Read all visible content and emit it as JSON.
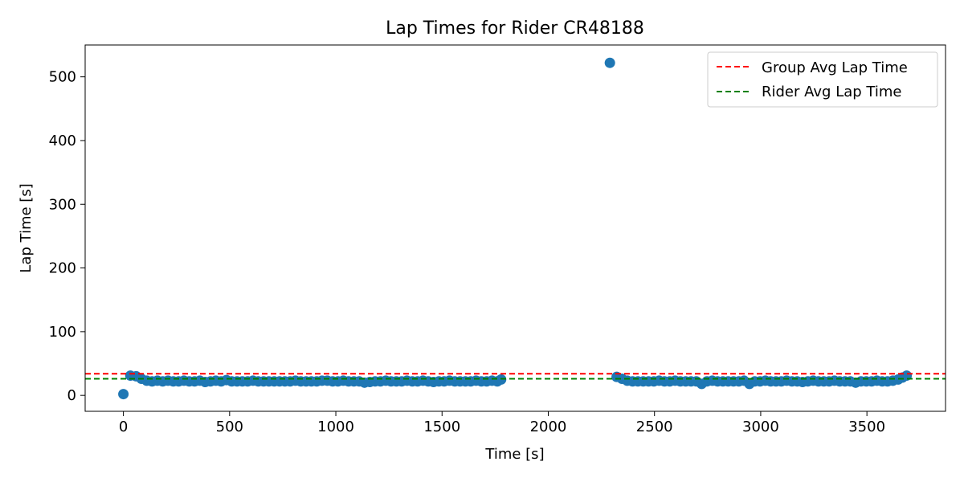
{
  "chart_data": {
    "type": "scatter",
    "title": "Lap Times for Rider CR48188",
    "xlabel": "Time [s]",
    "ylabel": "Lap Time [s]",
    "xlim": [
      -180,
      3870
    ],
    "ylim": [
      -25,
      550
    ],
    "xticks": [
      0,
      500,
      1000,
      1500,
      2000,
      2500,
      3000,
      3500
    ],
    "yticks": [
      0,
      100,
      200,
      300,
      400,
      500
    ],
    "grid": false,
    "legend_position": "top-right",
    "point_color": "#1f77b4",
    "lap_series": {
      "x": [
        0,
        33,
        60,
        85,
        110,
        135,
        160,
        185,
        210,
        235,
        260,
        285,
        310,
        335,
        360,
        385,
        410,
        435,
        460,
        485,
        510,
        535,
        560,
        585,
        610,
        635,
        660,
        685,
        710,
        735,
        760,
        785,
        810,
        835,
        860,
        885,
        910,
        935,
        960,
        985,
        1010,
        1035,
        1060,
        1085,
        1110,
        1135,
        1160,
        1185,
        1210,
        1235,
        1260,
        1285,
        1310,
        1335,
        1360,
        1385,
        1410,
        1435,
        1460,
        1485,
        1510,
        1535,
        1560,
        1585,
        1610,
        1635,
        1660,
        1685,
        1710,
        1735,
        1760,
        1778,
        2290,
        2322,
        2347,
        2372,
        2397,
        2422,
        2447,
        2472,
        2497,
        2522,
        2547,
        2572,
        2597,
        2622,
        2647,
        2672,
        2697,
        2722,
        2747,
        2772,
        2797,
        2822,
        2847,
        2872,
        2897,
        2922,
        2947,
        2972,
        2997,
        3022,
        3047,
        3072,
        3097,
        3122,
        3147,
        3172,
        3197,
        3222,
        3247,
        3272,
        3297,
        3322,
        3347,
        3372,
        3397,
        3422,
        3447,
        3472,
        3497,
        3522,
        3547,
        3572,
        3597,
        3622,
        3647,
        3667,
        3687
      ],
      "y": [
        2,
        31,
        30,
        26,
        23,
        22,
        23,
        22,
        23,
        22,
        22,
        23,
        22,
        22,
        23,
        21,
        22,
        23,
        22,
        24,
        22,
        22,
        22,
        22,
        23,
        22,
        22,
        22,
        22,
        22,
        22,
        22,
        23,
        22,
        22,
        22,
        22,
        23,
        23,
        22,
        22,
        23,
        22,
        22,
        22,
        20,
        21,
        22,
        22,
        23,
        22,
        22,
        22,
        23,
        22,
        22,
        23,
        22,
        21,
        22,
        22,
        23,
        22,
        22,
        22,
        22,
        23,
        22,
        22,
        23,
        22,
        25,
        522,
        29,
        26,
        23,
        22,
        22,
        22,
        22,
        22,
        23,
        22,
        22,
        23,
        22,
        22,
        22,
        22,
        18,
        22,
        23,
        22,
        22,
        22,
        22,
        22,
        23,
        18,
        22,
        22,
        23,
        22,
        22,
        22,
        23,
        22,
        22,
        21,
        22,
        23,
        22,
        22,
        22,
        23,
        22,
        22,
        22,
        20,
        22,
        22,
        22,
        23,
        22,
        22,
        23,
        25,
        28,
        31
      ]
    },
    "series": [
      {
        "name": "Group Avg Lap Time",
        "value": 34,
        "color": "#ff0000",
        "style": "dashed"
      },
      {
        "name": "Rider Avg Lap Time",
        "value": 26,
        "color": "#008000",
        "style": "dashed"
      }
    ]
  }
}
